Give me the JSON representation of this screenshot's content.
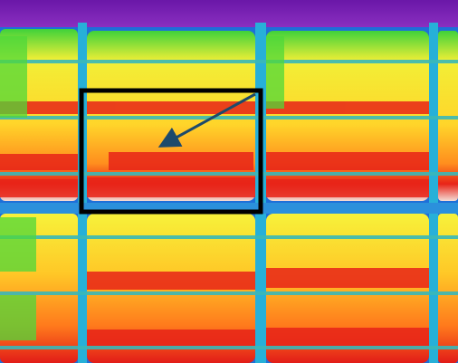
{
  "image": {
    "subject": "thermal-image-of-solar-panel-array",
    "palette": {
      "sky": "#7a1fb0",
      "frame_blue": "#1e6fd8",
      "cyan": "#27c8d8",
      "green": "#4fd83a",
      "yellow": "#f7f03a",
      "orange": "#ff9a1e",
      "red": "#e81f1a",
      "white_hot": "#f4e7e0"
    }
  },
  "annotation": {
    "box_color": "#000000",
    "arrow_color": "#1d4a6b",
    "target_icon": "arrow-icon"
  }
}
